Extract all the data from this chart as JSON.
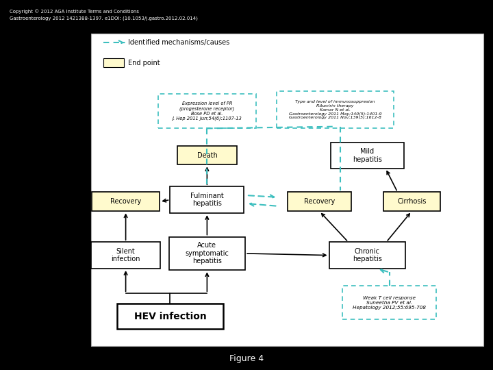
{
  "title": "Figure 4",
  "background_color": "#000000",
  "panel_background": "#ffffff",
  "teal_color": "#3DBFBF",
  "black_color": "#000000",
  "yellow_fill": "#FFFACD",
  "footer_line1": "Gastroenterology 2012 1421388-1397. e1DOI: (10.1053/j.gastro.2012.02.014)",
  "footer_line2": "Copyright © 2012 AGA Institute Terms and Conditions"
}
